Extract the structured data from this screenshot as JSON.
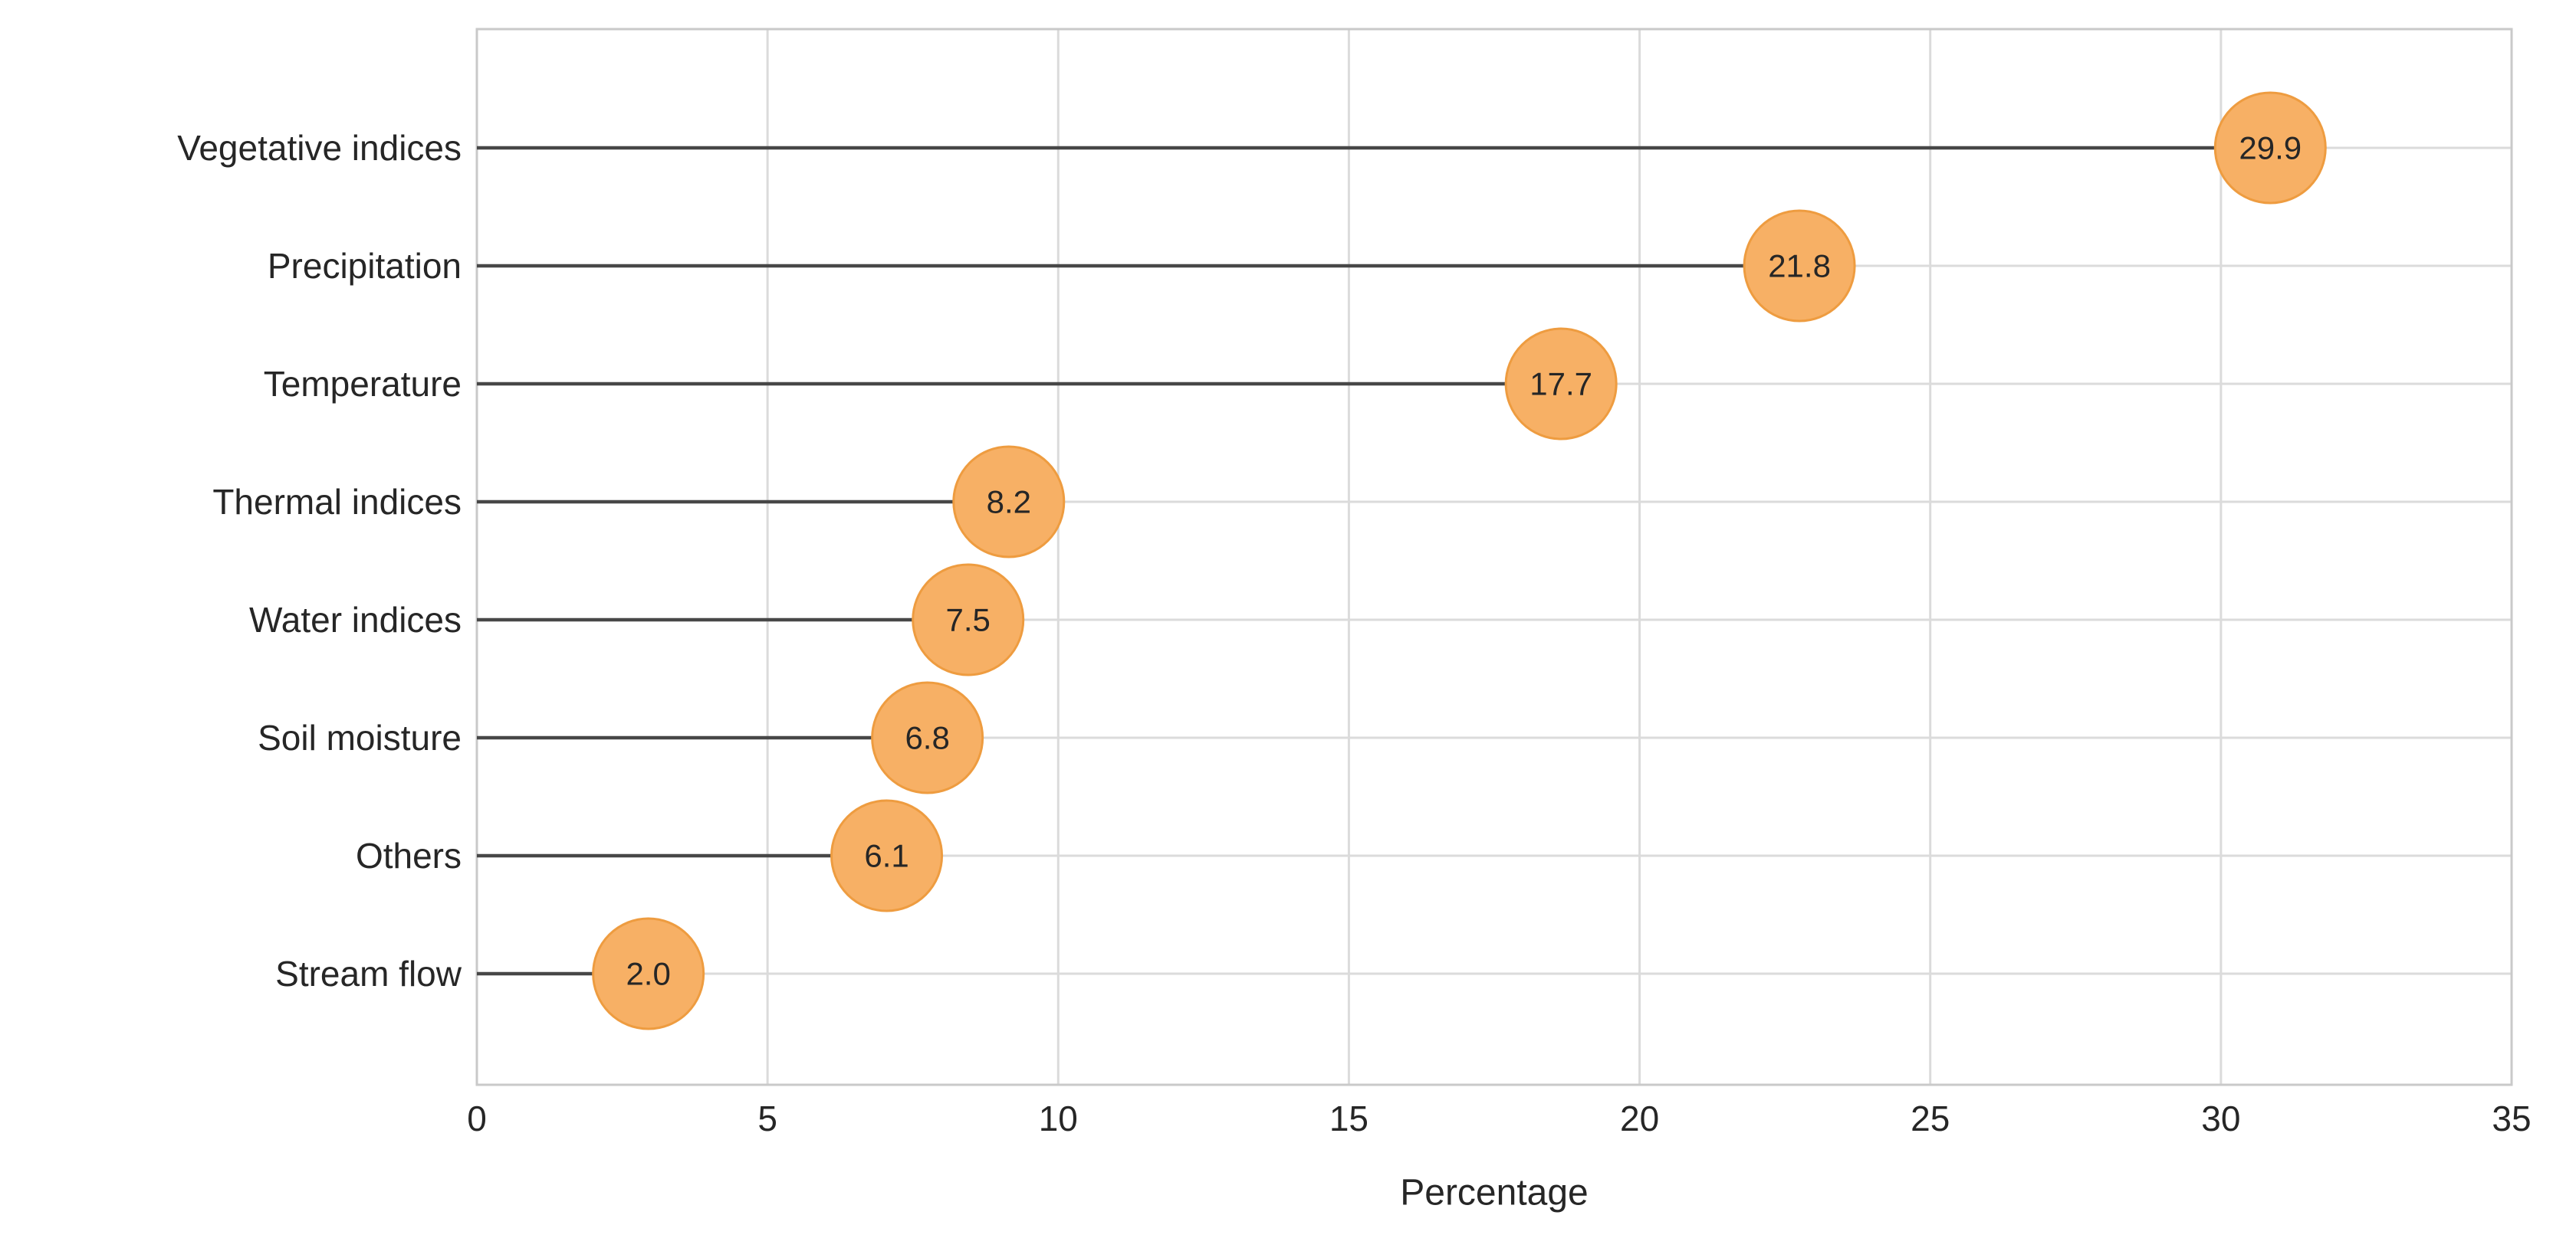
{
  "figure": {
    "background": "#FFFFFF"
  },
  "chart_data": {
    "type": "lollipop",
    "title": "",
    "xlabel": "Percentage",
    "ylabel": "",
    "categories": [
      "Vegetative indices",
      "Precipitation",
      "Temperature",
      "Thermal indices",
      "Water indices",
      "Soil moisture",
      "Others",
      "Stream flow"
    ],
    "values": [
      29.9,
      21.8,
      17.7,
      8.2,
      7.5,
      6.8,
      6.1,
      2.0
    ],
    "value_labels": [
      "29.9",
      "21.8",
      "17.7",
      "8.2",
      "7.5",
      "6.8",
      "6.1",
      "2.0"
    ],
    "xlim": [
      0,
      35
    ],
    "xticks": [
      0,
      5,
      10,
      15,
      20,
      25,
      30,
      35
    ],
    "xtick_labels": [
      "0",
      "5",
      "10",
      "15",
      "20",
      "25",
      "30",
      "35"
    ],
    "grid": "on",
    "legend": "none",
    "marker_style": "circle-with-value-label, left edge of circle at data value, stem from 0 to value",
    "colors": {
      "bubble_fill": "#F7B065",
      "bubble_stroke": "#EE9C40",
      "stem": "#474747",
      "gridline": "#DBDBDB",
      "plot_border": "#C9C9C9",
      "text": "#262626",
      "background": "#FFFFFF"
    }
  }
}
